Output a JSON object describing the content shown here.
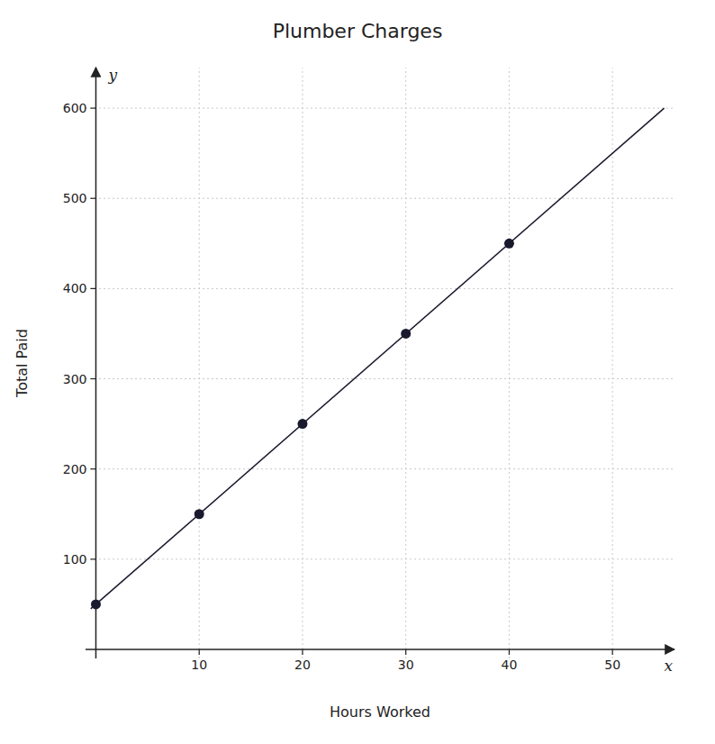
{
  "chart_data": {
    "type": "scatter",
    "title": "Plumber Charges",
    "x_label": "Hours Worked",
    "y_label": "Total Paid",
    "annotations": [
      "x",
      "y"
    ],
    "series": [
      {
        "type": "line",
        "color": "#1a1a2e",
        "line_style": "solid",
        "x": [
          -0.5,
          55
        ],
        "values": [
          45,
          600
        ]
      },
      {
        "type": "scatter",
        "color": "#1a1a2e",
        "marker": "circle",
        "x": [
          0,
          10,
          20,
          30,
          40
        ],
        "values": [
          50,
          150,
          250,
          350,
          450
        ]
      }
    ],
    "xlim": [
      -1,
      56
    ],
    "ylim": [
      -10,
      645
    ],
    "xticks": [
      10,
      20,
      30,
      40,
      50
    ],
    "yticks": [
      100,
      200,
      300,
      400,
      500,
      600
    ],
    "grid": true
  }
}
